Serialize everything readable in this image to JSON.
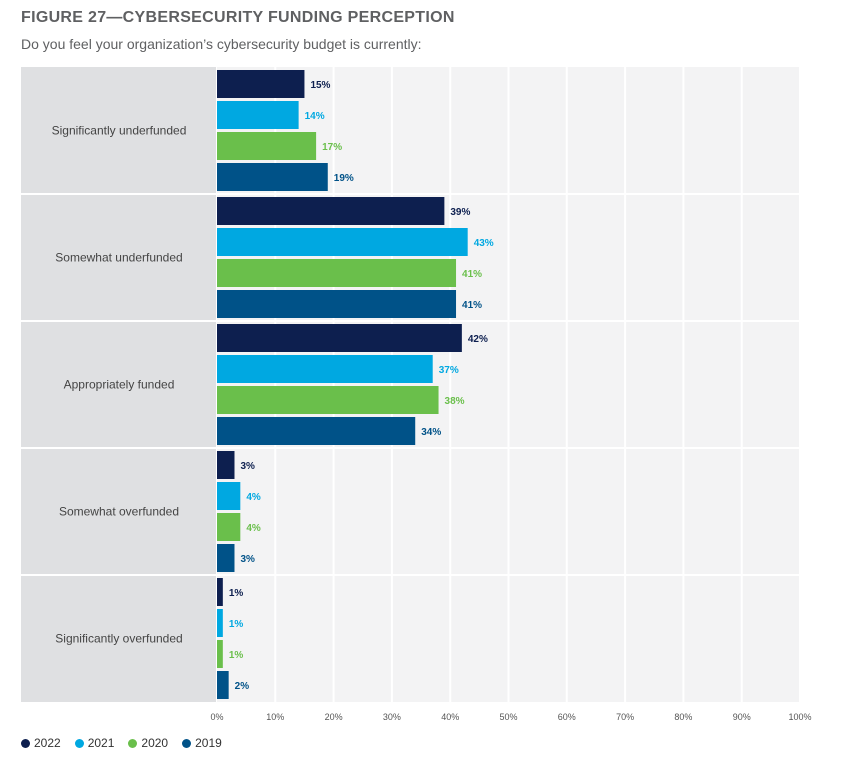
{
  "title": "FIGURE 27—CYBERSECURITY FUNDING PERCEPTION",
  "subtitle": "Do you feel your organization’s cybersecurity budget is currently:",
  "colors": {
    "2022": "#0d1f4f",
    "2021": "#00a8e1",
    "2020": "#6abf4b",
    "2019": "#005288",
    "category_band": "#dfe0e2",
    "plot_background": "#f3f3f4"
  },
  "chart_data": {
    "type": "bar",
    "orientation": "horizontal",
    "categories": [
      "Significantly underfunded",
      "Somewhat underfunded",
      "Appropriately funded",
      "Somewhat overfunded",
      "Significantly overfunded"
    ],
    "series": [
      {
        "name": "2022",
        "values": [
          15,
          39,
          42,
          3,
          1
        ]
      },
      {
        "name": "2021",
        "values": [
          14,
          43,
          37,
          4,
          1
        ]
      },
      {
        "name": "2020",
        "values": [
          17,
          41,
          38,
          4,
          1
        ]
      },
      {
        "name": "2019",
        "values": [
          19,
          41,
          34,
          3,
          2
        ]
      }
    ],
    "xlim": [
      0,
      100
    ],
    "x_ticks": [
      "0%",
      "10%",
      "20%",
      "30%",
      "40%",
      "50%",
      "60%",
      "70%",
      "80%",
      "90%",
      "100%"
    ],
    "value_suffix": "%",
    "grid": true,
    "legend_position": "bottom-left"
  }
}
